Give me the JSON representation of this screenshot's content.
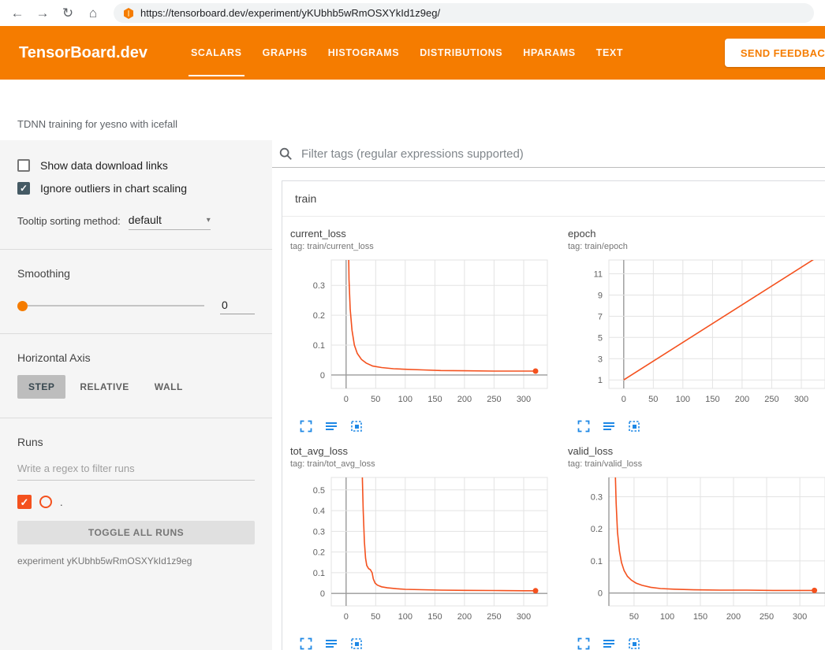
{
  "browser": {
    "url": "https://tensorboard.dev/experiment/yKUbhb5wRmOSXYkId1z9eg/",
    "icons": {
      "back": "←",
      "forward": "→",
      "reload": "↻",
      "home": "⌂"
    }
  },
  "header": {
    "logo": "TensorBoard.dev",
    "tabs": [
      {
        "label": "SCALARS",
        "active": true
      },
      {
        "label": "GRAPHS",
        "active": false
      },
      {
        "label": "HISTOGRAMS",
        "active": false
      },
      {
        "label": "DISTRIBUTIONS",
        "active": false
      },
      {
        "label": "HPARAMS",
        "active": false
      },
      {
        "label": "TEXT",
        "active": false
      }
    ],
    "feedback_button": "SEND FEEDBACK",
    "accent_color": "#f57c00"
  },
  "experiment_title": "TDNN training for yesno with icefall",
  "sidebar": {
    "show_download": {
      "label": "Show data download links",
      "checked": false
    },
    "ignore_outliers": {
      "label": "Ignore outliers in chart scaling",
      "checked": true
    },
    "tooltip_sorting": {
      "label": "Tooltip sorting method:",
      "value": "default",
      "caret": "▾"
    },
    "smoothing": {
      "label": "Smoothing",
      "value": "0"
    },
    "horizontal_axis": {
      "label": "Horizontal Axis",
      "options": [
        "STEP",
        "RELATIVE",
        "WALL"
      ],
      "selected": "STEP"
    },
    "runs": {
      "label": "Runs",
      "filter_placeholder": "Write a regex to filter runs",
      "run_name": ".",
      "run_color": "#f4511e",
      "toggle_button": "TOGGLE ALL RUNS",
      "experiment_note": "experiment yKUbhb5wRmOSXYkId1z9eg"
    }
  },
  "main": {
    "filter_placeholder": "Filter tags (regular expressions supported)",
    "section": "train",
    "icon_color": "#1e88e5"
  },
  "chart_data": [
    {
      "type": "line",
      "title": "current_loss",
      "tag": "tag: train/current_loss",
      "line_color": "#f4511e",
      "x_domain": [
        -25,
        340
      ],
      "y_domain": [
        -0.045,
        0.385
      ],
      "x_ticks": [
        [
          0,
          "0"
        ],
        [
          50,
          "50"
        ],
        [
          100,
          "100"
        ],
        [
          150,
          "150"
        ],
        [
          200,
          "200"
        ],
        [
          250,
          "250"
        ],
        [
          300,
          "300"
        ]
      ],
      "y_ticks": [
        [
          0,
          "0"
        ],
        [
          0.1,
          "0.1"
        ],
        [
          0.2,
          "0.2"
        ],
        [
          0.3,
          "0.3"
        ]
      ],
      "points": [
        [
          3,
          0.6
        ],
        [
          5,
          0.32
        ],
        [
          7,
          0.22
        ],
        [
          10,
          0.15
        ],
        [
          14,
          0.1
        ],
        [
          19,
          0.072
        ],
        [
          26,
          0.052
        ],
        [
          34,
          0.04
        ],
        [
          45,
          0.03
        ],
        [
          60,
          0.025
        ],
        [
          80,
          0.021
        ],
        [
          100,
          0.019
        ],
        [
          130,
          0.017
        ],
        [
          160,
          0.015
        ],
        [
          200,
          0.014
        ],
        [
          250,
          0.013
        ],
        [
          300,
          0.013
        ],
        [
          320,
          0.013
        ]
      ],
      "end_dot": [
        320,
        0.013
      ],
      "left_axis_line": false
    },
    {
      "type": "line",
      "title": "epoch",
      "tag": "tag: train/epoch",
      "line_color": "#f4511e",
      "x_domain": [
        -25,
        340
      ],
      "y_domain": [
        0.2,
        12.3
      ],
      "x_ticks": [
        [
          0,
          "0"
        ],
        [
          50,
          "50"
        ],
        [
          100,
          "100"
        ],
        [
          150,
          "150"
        ],
        [
          200,
          "200"
        ],
        [
          250,
          "250"
        ],
        [
          300,
          "300"
        ]
      ],
      "y_ticks": [
        [
          1,
          "1"
        ],
        [
          3,
          "3"
        ],
        [
          5,
          "5"
        ],
        [
          7,
          "7"
        ],
        [
          9,
          "9"
        ],
        [
          11,
          "11"
        ]
      ],
      "points": [
        [
          0,
          1
        ],
        [
          322,
          12.4
        ]
      ],
      "end_dot": null,
      "left_axis_line": false
    },
    {
      "type": "line",
      "title": "tot_avg_loss",
      "tag": "tag: train/tot_avg_loss",
      "line_color": "#f4511e",
      "x_domain": [
        -25,
        340
      ],
      "y_domain": [
        -0.06,
        0.56
      ],
      "x_ticks": [
        [
          0,
          "0"
        ],
        [
          50,
          "50"
        ],
        [
          100,
          "100"
        ],
        [
          150,
          "150"
        ],
        [
          200,
          "200"
        ],
        [
          250,
          "250"
        ],
        [
          300,
          "300"
        ]
      ],
      "y_ticks": [
        [
          0,
          "0"
        ],
        [
          0.1,
          "0.1"
        ],
        [
          0.2,
          "0.2"
        ],
        [
          0.3,
          "0.3"
        ],
        [
          0.4,
          "0.4"
        ],
        [
          0.5,
          "0.5"
        ]
      ],
      "points": [
        [
          27,
          0.62
        ],
        [
          29,
          0.4
        ],
        [
          31,
          0.25
        ],
        [
          33,
          0.17
        ],
        [
          35,
          0.135
        ],
        [
          38,
          0.12
        ],
        [
          41,
          0.115
        ],
        [
          44,
          0.1
        ],
        [
          46,
          0.07
        ],
        [
          49,
          0.05
        ],
        [
          53,
          0.04
        ],
        [
          60,
          0.032
        ],
        [
          70,
          0.027
        ],
        [
          85,
          0.023
        ],
        [
          100,
          0.02
        ],
        [
          130,
          0.018
        ],
        [
          160,
          0.016
        ],
        [
          200,
          0.015
        ],
        [
          250,
          0.014
        ],
        [
          300,
          0.013
        ],
        [
          320,
          0.013
        ]
      ],
      "end_dot": [
        320,
        0.013
      ],
      "left_axis_line": false
    },
    {
      "type": "line",
      "title": "valid_loss",
      "tag": "tag: train/valid_loss",
      "line_color": "#f4511e",
      "x_domain": [
        12,
        338
      ],
      "y_domain": [
        -0.04,
        0.36
      ],
      "x_ticks": [
        [
          50,
          "50"
        ],
        [
          100,
          "100"
        ],
        [
          150,
          "150"
        ],
        [
          200,
          "200"
        ],
        [
          250,
          "250"
        ],
        [
          300,
          "300"
        ]
      ],
      "y_ticks": [
        [
          0,
          "0"
        ],
        [
          0.1,
          "0.1"
        ],
        [
          0.2,
          "0.2"
        ],
        [
          0.3,
          "0.3"
        ]
      ],
      "points": [
        [
          21,
          0.42
        ],
        [
          23,
          0.28
        ],
        [
          25,
          0.19
        ],
        [
          28,
          0.13
        ],
        [
          31,
          0.095
        ],
        [
          35,
          0.07
        ],
        [
          40,
          0.052
        ],
        [
          46,
          0.04
        ],
        [
          53,
          0.031
        ],
        [
          62,
          0.024
        ],
        [
          75,
          0.018
        ],
        [
          90,
          0.014
        ],
        [
          110,
          0.012
        ],
        [
          140,
          0.01
        ],
        [
          180,
          0.009
        ],
        [
          220,
          0.009
        ],
        [
          260,
          0.008
        ],
        [
          300,
          0.008
        ],
        [
          322,
          0.008
        ]
      ],
      "end_dot": [
        322,
        0.008
      ],
      "left_axis_line": true
    }
  ]
}
